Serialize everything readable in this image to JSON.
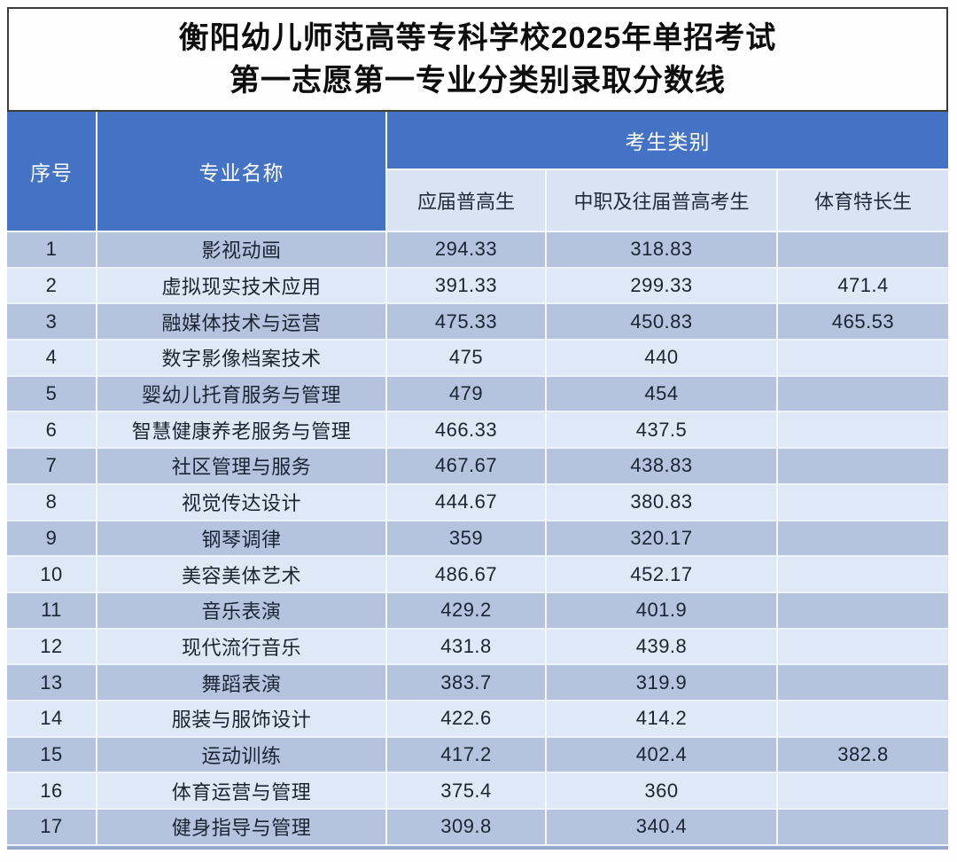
{
  "title": {
    "line1": "衡阳幼儿师范高等专科学校2025年单招考试",
    "line2": "第一志愿第一专业分类别录取分数线"
  },
  "table": {
    "headers": {
      "no": "序号",
      "major": "专业名称",
      "category_group": "考生类别",
      "cat1": "应届普高生",
      "cat2": "中职及往届普高考生",
      "cat3": "体育特长生"
    },
    "rows": [
      {
        "no": "1",
        "major": "影视动画",
        "cat1": "294.33",
        "cat2": "318.83",
        "cat3": ""
      },
      {
        "no": "2",
        "major": "虚拟现实技术应用",
        "cat1": "391.33",
        "cat2": "299.33",
        "cat3": "471.4"
      },
      {
        "no": "3",
        "major": "融媒体技术与运营",
        "cat1": "475.33",
        "cat2": "450.83",
        "cat3": "465.53"
      },
      {
        "no": "4",
        "major": "数字影像档案技术",
        "cat1": "475",
        "cat2": "440",
        "cat3": ""
      },
      {
        "no": "5",
        "major": "婴幼儿托育服务与管理",
        "cat1": "479",
        "cat2": "454",
        "cat3": ""
      },
      {
        "no": "6",
        "major": "智慧健康养老服务与管理",
        "cat1": "466.33",
        "cat2": "437.5",
        "cat3": ""
      },
      {
        "no": "7",
        "major": "社区管理与服务",
        "cat1": "467.67",
        "cat2": "438.83",
        "cat3": ""
      },
      {
        "no": "8",
        "major": "视觉传达设计",
        "cat1": "444.67",
        "cat2": "380.83",
        "cat3": ""
      },
      {
        "no": "9",
        "major": "钢琴调律",
        "cat1": "359",
        "cat2": "320.17",
        "cat3": ""
      },
      {
        "no": "10",
        "major": "美容美体艺术",
        "cat1": "486.67",
        "cat2": "452.17",
        "cat3": ""
      },
      {
        "no": "11",
        "major": "音乐表演",
        "cat1": "429.2",
        "cat2": "401.9",
        "cat3": ""
      },
      {
        "no": "12",
        "major": "现代流行音乐",
        "cat1": "431.8",
        "cat2": "439.8",
        "cat3": ""
      },
      {
        "no": "13",
        "major": "舞蹈表演",
        "cat1": "383.7",
        "cat2": "319.9",
        "cat3": ""
      },
      {
        "no": "14",
        "major": "服装与服饰设计",
        "cat1": "422.6",
        "cat2": "414.2",
        "cat3": ""
      },
      {
        "no": "15",
        "major": "运动训练",
        "cat1": "417.2",
        "cat2": "402.4",
        "cat3": "382.8"
      },
      {
        "no": "16",
        "major": "体育运营与管理",
        "cat1": "375.4",
        "cat2": "360",
        "cat3": ""
      },
      {
        "no": "17",
        "major": "健身指导与管理",
        "cat1": "309.8",
        "cat2": "340.4",
        "cat3": ""
      }
    ]
  },
  "colors": {
    "header_blue": "#4472c4",
    "subheader_bg": "#dae3f3",
    "row_odd": "#b6c3de",
    "row_even": "#dee8f6",
    "bottom_border": "#95a8d0"
  }
}
